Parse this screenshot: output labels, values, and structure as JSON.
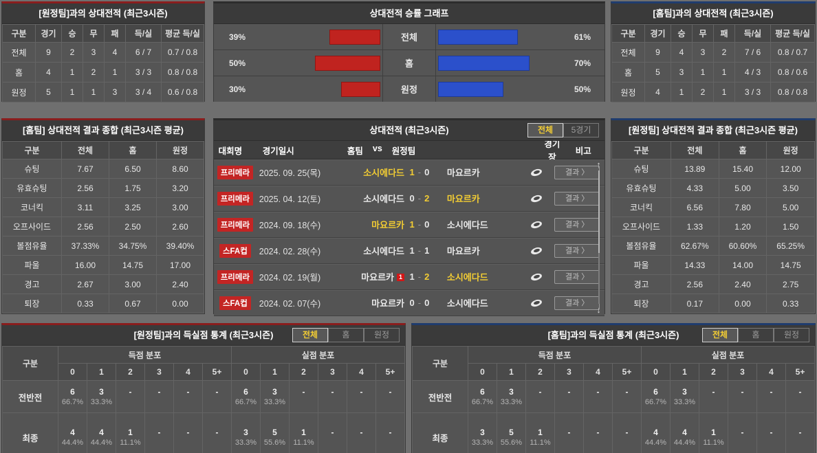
{
  "h2h_away": {
    "title": "[원정팀]과의 상대전적 (최근3시즌)",
    "headers": [
      "구분",
      "경기",
      "승",
      "무",
      "패",
      "득/실",
      "평균 득/실"
    ],
    "rows": [
      {
        "label": "전체",
        "cells": [
          "9",
          "2",
          "3",
          "4",
          "6 / 7",
          "0.7 / 0.8"
        ]
      },
      {
        "label": "홈",
        "cells": [
          "4",
          "1",
          "2",
          "1",
          "3 / 3",
          "0.8 / 0.8"
        ]
      },
      {
        "label": "원정",
        "cells": [
          "5",
          "1",
          "1",
          "3",
          "3 / 4",
          "0.6 / 0.8"
        ]
      }
    ]
  },
  "h2h_home": {
    "title": "[홈팀]과의 상대전적 (최근3시즌)",
    "headers": [
      "구분",
      "경기",
      "승",
      "무",
      "패",
      "득/실",
      "평균 득/실"
    ],
    "rows": [
      {
        "label": "전체",
        "cells": [
          "9",
          "4",
          "3",
          "2",
          "7 / 6",
          "0.8 / 0.7"
        ]
      },
      {
        "label": "홈",
        "cells": [
          "5",
          "3",
          "1",
          "1",
          "4 / 3",
          "0.8 / 0.6"
        ]
      },
      {
        "label": "원정",
        "cells": [
          "4",
          "1",
          "2",
          "1",
          "3 / 3",
          "0.8 / 0.8"
        ]
      }
    ]
  },
  "chart_data": {
    "type": "bar",
    "title": "상대전적 승률 그래프",
    "categories": [
      "전체",
      "홈",
      "원정"
    ],
    "series": [
      {
        "name": "left-red",
        "values": [
          39,
          50,
          30
        ]
      },
      {
        "name": "right-blue",
        "values": [
          61,
          70,
          50
        ]
      }
    ],
    "rows": [
      {
        "label": "전체",
        "left": 39,
        "left_pct": "39%",
        "right": 61,
        "right_pct": "61%"
      },
      {
        "label": "홈",
        "left": 50,
        "left_pct": "50%",
        "right": 70,
        "right_pct": "70%"
      },
      {
        "label": "원정",
        "left": 30,
        "left_pct": "30%",
        "right": 50,
        "right_pct": "50%"
      }
    ],
    "colors": {
      "left": "#c0231f",
      "right": "#2b50cb"
    }
  },
  "summary_home": {
    "title": "[홈팀] 상대전적 결과 종합 (최근3시즌 평균)",
    "headers": [
      "구분",
      "전체",
      "홈",
      "원정"
    ],
    "rows": [
      {
        "label": "슈팅",
        "cells": [
          "7.67",
          "6.50",
          "8.60"
        ]
      },
      {
        "label": "유효슈팅",
        "cells": [
          "2.56",
          "1.75",
          "3.20"
        ]
      },
      {
        "label": "코너킥",
        "cells": [
          "3.11",
          "3.25",
          "3.00"
        ]
      },
      {
        "label": "오프사이드",
        "cells": [
          "2.56",
          "2.50",
          "2.60"
        ]
      },
      {
        "label": "볼점유율",
        "cells": [
          "37.33%",
          "34.75%",
          "39.40%"
        ]
      },
      {
        "label": "파울",
        "cells": [
          "16.00",
          "14.75",
          "17.00"
        ]
      },
      {
        "label": "경고",
        "cells": [
          "2.67",
          "3.00",
          "2.40"
        ]
      },
      {
        "label": "퇴장",
        "cells": [
          "0.33",
          "0.67",
          "0.00"
        ]
      }
    ]
  },
  "summary_away": {
    "title": "[원정팀] 상대전적 결과 종합 (최근3시즌 평균)",
    "headers": [
      "구분",
      "전체",
      "홈",
      "원정"
    ],
    "rows": [
      {
        "label": "슈팅",
        "cells": [
          "13.89",
          "15.40",
          "12.00"
        ]
      },
      {
        "label": "유효슈팅",
        "cells": [
          "4.33",
          "5.00",
          "3.50"
        ]
      },
      {
        "label": "코너킥",
        "cells": [
          "6.56",
          "7.80",
          "5.00"
        ]
      },
      {
        "label": "오프사이드",
        "cells": [
          "1.33",
          "1.20",
          "1.50"
        ]
      },
      {
        "label": "볼점유율",
        "cells": [
          "62.67%",
          "60.60%",
          "65.25%"
        ]
      },
      {
        "label": "파울",
        "cells": [
          "14.33",
          "14.00",
          "14.75"
        ]
      },
      {
        "label": "경고",
        "cells": [
          "2.56",
          "2.40",
          "2.75"
        ]
      },
      {
        "label": "퇴장",
        "cells": [
          "0.17",
          "0.00",
          "0.33"
        ]
      }
    ]
  },
  "matches": {
    "title": "상대전적 (최근3시즌)",
    "filter_all": "전체",
    "filter_five": "5경기",
    "headers": {
      "league": "대회명",
      "date": "경기일시",
      "home": "홈팀",
      "vs": "vs",
      "away": "원정팀",
      "venue": "경기장",
      "note": "비고"
    },
    "result_label": "결과 〉",
    "scroll_up": "↑",
    "scroll_down": "↓",
    "rows": [
      {
        "league": "프리메라",
        "date": "2025. 09. 25(목)",
        "home": "소시에다드",
        "hs": "1",
        "dash": "-",
        "as": "0",
        "away": "마요르카",
        "home_win": true,
        "away_win": false,
        "home_card": ""
      },
      {
        "league": "프리메라",
        "date": "2025. 04. 12(토)",
        "home": "소시에다드",
        "hs": "0",
        "dash": "-",
        "as": "2",
        "away": "마요르카",
        "home_win": false,
        "away_win": true,
        "home_card": ""
      },
      {
        "league": "프리메라",
        "date": "2024. 09. 18(수)",
        "home": "마요르카",
        "hs": "1",
        "dash": "-",
        "as": "0",
        "away": "소시에다드",
        "home_win": true,
        "away_win": false,
        "home_card": ""
      },
      {
        "league": "스FA컵",
        "date": "2024. 02. 28(수)",
        "home": "소시에다드",
        "hs": "1",
        "dash": "-",
        "as": "1",
        "away": "마요르카",
        "home_win": false,
        "away_win": false,
        "home_card": ""
      },
      {
        "league": "프리메라",
        "date": "2024. 02. 19(월)",
        "home": "마요르카",
        "hs": "1",
        "dash": "-",
        "as": "2",
        "away": "소시에다드",
        "home_win": false,
        "away_win": true,
        "home_card": "1"
      },
      {
        "league": "스FA컵",
        "date": "2024. 02. 07(수)",
        "home": "마요르카",
        "hs": "0",
        "dash": "-",
        "as": "0",
        "away": "소시에다드",
        "home_win": false,
        "away_win": false,
        "home_card": ""
      }
    ]
  },
  "goal_stats_away": {
    "title": "[원정팀]과의 득실점 통계 (최근3시즌)",
    "filters": {
      "all": "전체",
      "home": "홈",
      "away": "원정"
    },
    "col_label": "구분",
    "group_scored": "득점 분포",
    "group_conceded": "실점 분포",
    "bins": [
      "0",
      "1",
      "2",
      "3",
      "4",
      "5+"
    ],
    "rows": [
      {
        "label": "전반전",
        "scored": [
          {
            "n": "6",
            "p": "66.7%"
          },
          {
            "n": "3",
            "p": "33.3%"
          },
          {
            "n": "-",
            "p": ""
          },
          {
            "n": "-",
            "p": ""
          },
          {
            "n": "-",
            "p": ""
          },
          {
            "n": "-",
            "p": ""
          }
        ],
        "conceded": [
          {
            "n": "6",
            "p": "66.7%"
          },
          {
            "n": "3",
            "p": "33.3%"
          },
          {
            "n": "-",
            "p": ""
          },
          {
            "n": "-",
            "p": ""
          },
          {
            "n": "-",
            "p": ""
          },
          {
            "n": "-",
            "p": ""
          }
        ]
      },
      {
        "label": "최종",
        "scored": [
          {
            "n": "4",
            "p": "44.4%"
          },
          {
            "n": "4",
            "p": "44.4%"
          },
          {
            "n": "1",
            "p": "11.1%"
          },
          {
            "n": "-",
            "p": ""
          },
          {
            "n": "-",
            "p": ""
          },
          {
            "n": "-",
            "p": ""
          }
        ],
        "conceded": [
          {
            "n": "3",
            "p": "33.3%"
          },
          {
            "n": "5",
            "p": "55.6%"
          },
          {
            "n": "1",
            "p": "11.1%"
          },
          {
            "n": "-",
            "p": ""
          },
          {
            "n": "-",
            "p": ""
          },
          {
            "n": "-",
            "p": ""
          }
        ]
      }
    ]
  },
  "goal_stats_home": {
    "title": "[홈팀]과의 득실점 통계 (최근3시즌)",
    "filters": {
      "all": "전체",
      "home": "홈",
      "away": "원정"
    },
    "col_label": "구분",
    "group_scored": "득점 분포",
    "group_conceded": "실점 분포",
    "bins": [
      "0",
      "1",
      "2",
      "3",
      "4",
      "5+"
    ],
    "rows": [
      {
        "label": "전반전",
        "scored": [
          {
            "n": "6",
            "p": "66.7%"
          },
          {
            "n": "3",
            "p": "33.3%"
          },
          {
            "n": "-",
            "p": ""
          },
          {
            "n": "-",
            "p": ""
          },
          {
            "n": "-",
            "p": ""
          },
          {
            "n": "-",
            "p": ""
          }
        ],
        "conceded": [
          {
            "n": "6",
            "p": "66.7%"
          },
          {
            "n": "3",
            "p": "33.3%"
          },
          {
            "n": "-",
            "p": ""
          },
          {
            "n": "-",
            "p": ""
          },
          {
            "n": "-",
            "p": ""
          },
          {
            "n": "-",
            "p": ""
          }
        ]
      },
      {
        "label": "최종",
        "scored": [
          {
            "n": "3",
            "p": "33.3%"
          },
          {
            "n": "5",
            "p": "55.6%"
          },
          {
            "n": "1",
            "p": "11.1%"
          },
          {
            "n": "-",
            "p": ""
          },
          {
            "n": "-",
            "p": ""
          },
          {
            "n": "-",
            "p": ""
          }
        ],
        "conceded": [
          {
            "n": "4",
            "p": "44.4%"
          },
          {
            "n": "4",
            "p": "44.4%"
          },
          {
            "n": "1",
            "p": "11.1%"
          },
          {
            "n": "-",
            "p": ""
          },
          {
            "n": "-",
            "p": ""
          },
          {
            "n": "-",
            "p": ""
          }
        ]
      }
    ]
  }
}
